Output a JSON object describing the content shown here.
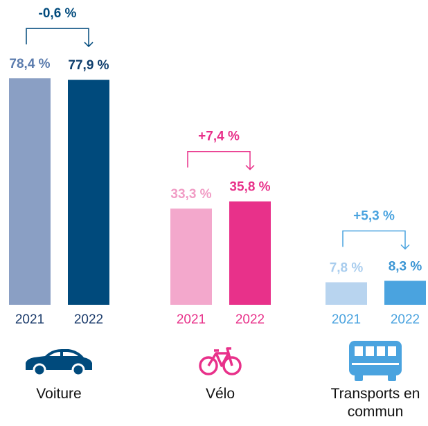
{
  "chart_data": {
    "type": "bar",
    "groups": [
      {
        "name": "Voiture",
        "categories": [
          "2021",
          "2022"
        ],
        "values": [
          78.4,
          77.9
        ],
        "value_labels": [
          "78,4 %",
          "77,9 %"
        ],
        "colors": [
          "#8a9fc4",
          "#004a7c"
        ],
        "label_colors": [
          "#5a7bad",
          "#0c3c6b"
        ],
        "change": "-0,6 %",
        "icon": "car"
      },
      {
        "name": "Vélo",
        "categories": [
          "2021",
          "2022"
        ],
        "values": [
          33.3,
          35.8
        ],
        "value_labels": [
          "33,3 %",
          "35,8 %"
        ],
        "colors": [
          "#f3a8cc",
          "#e8318a"
        ],
        "label_colors": [
          "#f19cc5",
          "#e8318a"
        ],
        "change": "+7,4 %",
        "icon": "bike"
      },
      {
        "name": "Transports en commun",
        "categories": [
          "2021",
          "2022"
        ],
        "values": [
          7.8,
          8.3
        ],
        "value_labels": [
          "7,8 %",
          "8,3 %"
        ],
        "colors": [
          "#b8d4ef",
          "#4aa3df"
        ],
        "label_colors": [
          "#a9cdee",
          "#3a95d4"
        ],
        "change": "+5,3 %",
        "icon": "bus"
      }
    ]
  }
}
